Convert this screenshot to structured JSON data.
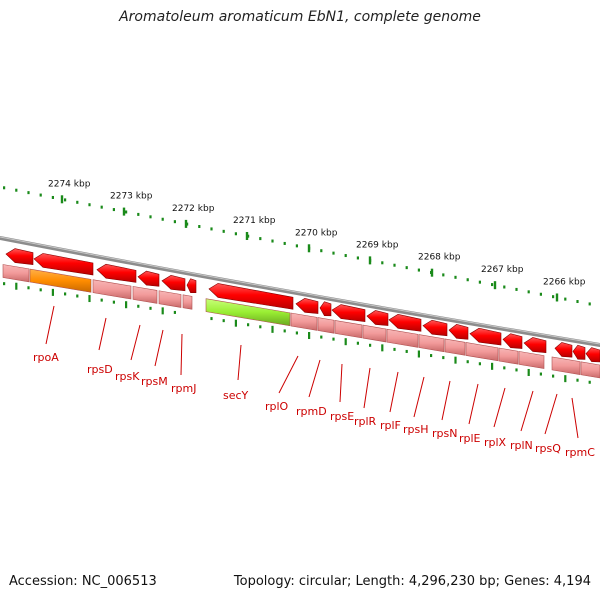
{
  "title": "Aromatoleum aromaticum EbN1, complete genome",
  "footer": {
    "accession": "Accession: NC_006513",
    "summary": "Topology: circular; Length: 4,296,230 bp; Genes: 4,194"
  },
  "ruler": {
    "labels": [
      "2274 kbp",
      "2273 kbp",
      "2272 kbp",
      "2271 kbp",
      "2270 kbp",
      "2269 kbp",
      "2268 kbp",
      "2267 kbp",
      "2266 kbp"
    ]
  },
  "genes": [
    "rpoA",
    "rpsD",
    "rpsK",
    "rpsM",
    "rpmJ",
    "secY",
    "rplO",
    "rpmD",
    "rpsE",
    "rplR",
    "rplF",
    "rpsH",
    "rpsN",
    "rplE",
    "rplX",
    "rplN",
    "rpsQ",
    "rpmC"
  ],
  "colors": {
    "gene": "#ee0000",
    "gene_highlight_1": "#ff8c00",
    "gene_highlight_2": "#99ee33",
    "feature": "#f29a9a",
    "backbone": "#8c8c8c",
    "ticks": "#1a8a1a",
    "label": "#cc0000"
  }
}
